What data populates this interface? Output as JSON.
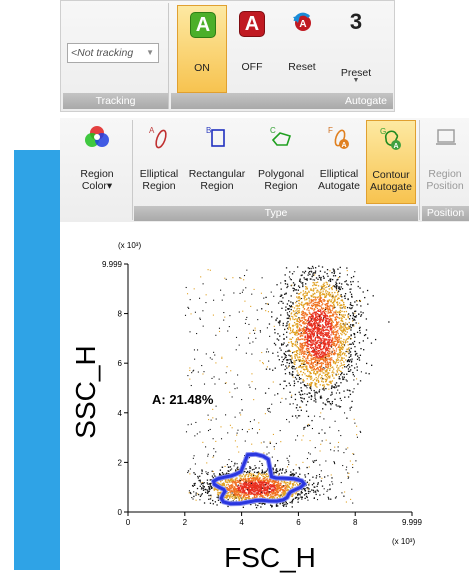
{
  "tracking": {
    "select_value": "<Not tracking",
    "group_label": "Tracking"
  },
  "autogate": {
    "group_label": "Autogate",
    "on_icon_letter": "A",
    "on_label": "ON",
    "off_icon_letter": "A",
    "off_label": "OFF",
    "reset_label": "Reset",
    "preset_value": "3",
    "preset_label": "Preset"
  },
  "region_toolbar": {
    "region_color_label_1": "Region",
    "region_color_label_2": "Color",
    "elliptical_letter": "A",
    "rectangular_letter": "B",
    "polygonal_letter": "C",
    "elliptical_autogate_letter": "F",
    "contour_autogate_letter": "G",
    "buttons": [
      {
        "l1": "Elliptical",
        "l2": "Region"
      },
      {
        "l1": "Rectangular",
        "l2": "Region"
      },
      {
        "l1": "Polygonal",
        "l2": "Region"
      },
      {
        "l1": "Elliptical",
        "l2": "Autogate"
      },
      {
        "l1": "Contour",
        "l2": "Autogate"
      },
      {
        "l1": "Region",
        "l2": "Position"
      }
    ],
    "type_group_label": "Type",
    "position_group_label": "Position"
  },
  "chart_data": {
    "type": "scatter",
    "xlabel": "FSC_H",
    "ylabel": "SSC_H",
    "x_scale_label": "(x 10³)",
    "y_scale_label": "(x 10³)",
    "xlim": [
      0,
      9.999
    ],
    "ylim": [
      0,
      9.999
    ],
    "x_ticks": [
      "0",
      "2",
      "4",
      "6",
      "8",
      "9.999"
    ],
    "y_ticks": [
      "0",
      "2",
      "4",
      "6",
      "8",
      "9.999"
    ],
    "region_label": "A: 21.48%",
    "region_percent": 21.48,
    "populations": [
      {
        "cx": 6.7,
        "cy": 7.2,
        "sx": 0.55,
        "sy": 1.2
      },
      {
        "cx": 4.5,
        "cy": 1.0,
        "sx": 0.9,
        "sy": 0.35
      }
    ],
    "gate_color": "#2a36e0",
    "dot_colors": [
      "#111111",
      "#e0a020",
      "#f07020",
      "#e83020"
    ]
  }
}
